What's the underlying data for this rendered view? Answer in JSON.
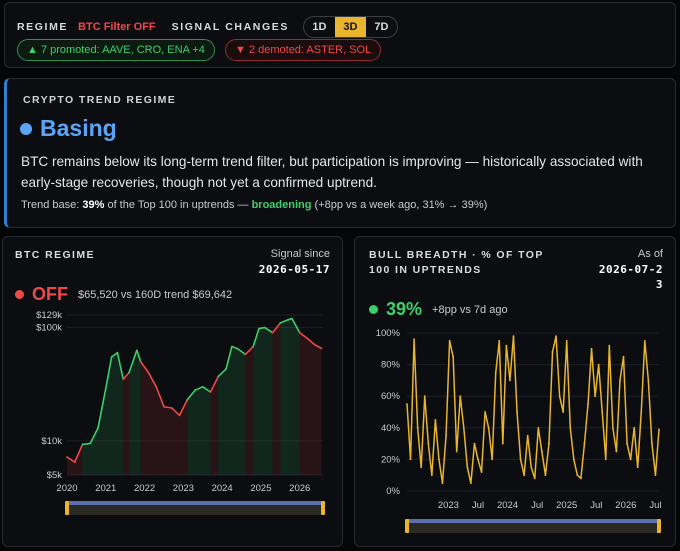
{
  "topbar": {
    "regime_label": "REGIME",
    "btc_filter": "BTC Filter OFF",
    "signal_label": "SIGNAL CHANGES",
    "timeframes": [
      "1D",
      "3D",
      "7D"
    ],
    "active_timeframe": "3D",
    "promoted": "▲ 7 promoted: AAVE, CRO, ENA +4",
    "demoted": "▼ 2 demoted: ASTER, SOL"
  },
  "regime_card": {
    "eyebrow": "CRYPTO TREND REGIME",
    "title": "Basing",
    "description": "BTC remains below its long-term trend filter, but participation is improving — historically associated with early-stage recoveries, though not yet a confirmed uptrend.",
    "trend_base_prefix": "Trend base: ",
    "trend_base_pct": "39%",
    "trend_base_mid": " of the Top 100 in uptrends — ",
    "trend_base_status": "broadening",
    "trend_base_suffix": " (+8pp vs a week ago, 31% → 39%)"
  },
  "btc_panel": {
    "title": "BTC REGIME",
    "signal_since_label": "Signal since",
    "signal_since_date": "2026-05-17",
    "status": "OFF",
    "price_text": "$65,520 vs 160D trend $69,642",
    "colors": {
      "bull": "#3bd06a",
      "bear": "#f04848"
    }
  },
  "breadth_panel": {
    "title": "BULL BREADTH · % OF TOP 100 IN UPTRENDS",
    "as_of_label": "As of",
    "as_of_date": "2026-07-23",
    "value": "39%",
    "change": "+8pp vs 7d ago",
    "color": "#e8b52c"
  },
  "chart_data": [
    {
      "type": "line",
      "title": "BTC REGIME",
      "scale": "log",
      "y_tick_labels": [
        "$129k",
        "$100k",
        "$10k",
        "$5k"
      ],
      "y_ticks": [
        129000,
        100000,
        10000,
        5000
      ],
      "x_tick_labels": [
        "2020",
        "2021",
        "2022",
        "2023",
        "2024",
        "2025",
        "2026"
      ],
      "ylim": [
        5000,
        129000
      ],
      "series": [
        {
          "x": [
            2020.0,
            2020.2,
            2020.4,
            2020.6,
            2020.8,
            2021.0,
            2021.15,
            2021.3,
            2021.45,
            2021.6,
            2021.8,
            2021.9,
            2022.1,
            2022.3,
            2022.5,
            2022.7,
            2022.9,
            2023.1,
            2023.3,
            2023.5,
            2023.7,
            2023.9,
            2024.1,
            2024.25,
            2024.4,
            2024.6,
            2024.8,
            2024.95,
            2025.1,
            2025.3,
            2025.5,
            2025.7,
            2025.8,
            2026.0,
            2026.2,
            2026.4,
            2026.56
          ],
          "values": [
            7200,
            6500,
            9300,
            9500,
            13000,
            29000,
            55000,
            60000,
            35000,
            40000,
            63000,
            50000,
            40000,
            30000,
            20000,
            19500,
            16800,
            23000,
            28000,
            30000,
            27000,
            37000,
            43000,
            68000,
            65000,
            58000,
            68000,
            98000,
            100000,
            90000,
            110000,
            117000,
            120000,
            90000,
            80000,
            70000,
            65520
          ],
          "regime": [
            "off",
            "off",
            "on",
            "on",
            "on",
            "on",
            "on",
            "on",
            "off",
            "on",
            "on",
            "off",
            "off",
            "off",
            "off",
            "off",
            "off",
            "on",
            "on",
            "on",
            "off",
            "on",
            "on",
            "on",
            "on",
            "off",
            "on",
            "on",
            "on",
            "off",
            "on",
            "on",
            "on",
            "off",
            "off",
            "off",
            "off"
          ]
        }
      ]
    },
    {
      "type": "line",
      "title": "BULL BREADTH · % OF TOP 100 IN UPTRENDS",
      "y_tick_labels": [
        "100%",
        "80%",
        "60%",
        "40%",
        "20%",
        "0%"
      ],
      "y_ticks": [
        100,
        80,
        60,
        40,
        20,
        0
      ],
      "x_tick_labels": [
        "2023",
        "Jul",
        "2024",
        "Jul",
        "2025",
        "Jul",
        "2026",
        "Jul"
      ],
      "ylim": [
        0,
        100
      ],
      "series": [
        {
          "name": "Bull breadth",
          "x": [
            2022.3,
            2022.36,
            2022.42,
            2022.48,
            2022.54,
            2022.6,
            2022.66,
            2022.72,
            2022.78,
            2022.84,
            2022.9,
            2022.96,
            2023.02,
            2023.08,
            2023.14,
            2023.2,
            2023.26,
            2023.32,
            2023.38,
            2023.44,
            2023.5,
            2023.56,
            2023.62,
            2023.68,
            2023.74,
            2023.8,
            2023.86,
            2023.92,
            2023.98,
            2024.04,
            2024.1,
            2024.16,
            2024.22,
            2024.28,
            2024.34,
            2024.4,
            2024.46,
            2024.52,
            2024.58,
            2024.64,
            2024.7,
            2024.76,
            2024.82,
            2024.88,
            2024.94,
            2025.0,
            2025.06,
            2025.12,
            2025.18,
            2025.24,
            2025.3,
            2025.36,
            2025.42,
            2025.48,
            2025.54,
            2025.6,
            2025.66,
            2025.72,
            2025.78,
            2025.84,
            2025.9,
            2025.96,
            2026.02,
            2026.08,
            2026.14,
            2026.2,
            2026.26,
            2026.32,
            2026.38,
            2026.44,
            2026.5,
            2026.56
          ],
          "values": [
            55,
            20,
            96,
            40,
            15,
            60,
            30,
            10,
            45,
            20,
            5,
            35,
            95,
            85,
            25,
            60,
            40,
            15,
            5,
            30,
            20,
            12,
            50,
            40,
            20,
            75,
            95,
            30,
            92,
            70,
            98,
            50,
            20,
            10,
            35,
            15,
            8,
            40,
            25,
            10,
            30,
            88,
            98,
            60,
            50,
            95,
            40,
            20,
            10,
            8,
            30,
            55,
            90,
            60,
            80,
            50,
            20,
            92,
            40,
            25,
            70,
            85,
            30,
            20,
            40,
            15,
            50,
            95,
            70,
            30,
            10,
            39
          ]
        }
      ]
    }
  ]
}
